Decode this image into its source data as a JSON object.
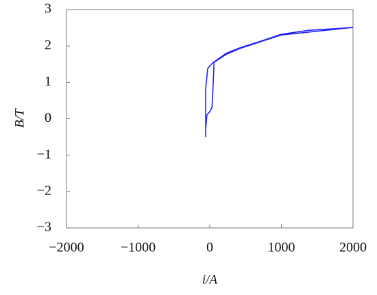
{
  "chart_data": {
    "type": "line",
    "xlabel": "i/A",
    "ylabel": "B/T",
    "x": [
      -57,
      -57,
      -29,
      38,
      230,
      420,
      708,
      995,
      1378,
      1856,
      2000,
      995,
      420,
      230,
      60,
      40,
      30,
      0,
      -40,
      -57
    ],
    "series": [
      {
        "name": "B",
        "color": "#2222ff",
        "values": [
          -0.5,
          0.82,
          1.38,
          1.53,
          1.8,
          1.95,
          2.13,
          2.32,
          2.43,
          2.49,
          2.51,
          2.3,
          1.93,
          1.77,
          1.55,
          0.6,
          0.3,
          0.2,
          0.1,
          -0.3
        ]
      }
    ],
    "xlim": [
      -2000,
      2000
    ],
    "xticks": [
      {
        "value": -2000,
        "label": "−2000"
      },
      {
        "value": -1000,
        "label": "−1000"
      },
      0,
      1000,
      2000
    ],
    "ylim": [
      -3,
      3
    ],
    "yticks": [
      {
        "value": -3,
        "label": "−3"
      },
      {
        "value": -2,
        "label": "−2"
      },
      {
        "value": -1,
        "label": "−1"
      },
      0,
      1,
      2,
      3
    ]
  }
}
